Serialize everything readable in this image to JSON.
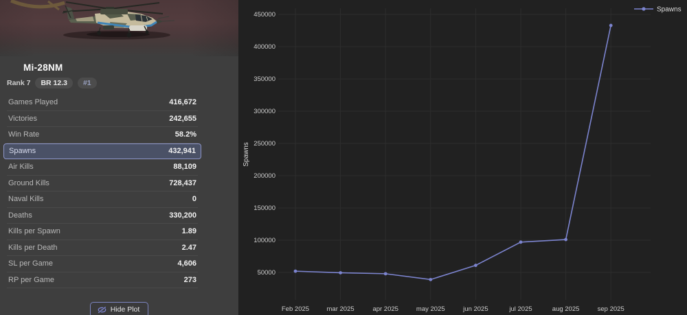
{
  "sidebar": {
    "title": "Mi-28NM",
    "rank": "Rank 7",
    "br_badge": "BR 12.3",
    "position_badge": "#1",
    "vehicle_image": "mi-28nm-attack-helicopter",
    "stats": [
      {
        "label": "Games Played",
        "value": "416,672",
        "selected": false
      },
      {
        "label": "Victories",
        "value": "242,655",
        "selected": false
      },
      {
        "label": "Win Rate",
        "value": "58.2%",
        "selected": false
      },
      {
        "label": "Spawns",
        "value": "432,941",
        "selected": true
      },
      {
        "label": "Air Kills",
        "value": "88,109",
        "selected": false
      },
      {
        "label": "Ground Kills",
        "value": "728,437",
        "selected": false
      },
      {
        "label": "Naval Kills",
        "value": "0",
        "selected": false
      },
      {
        "label": "Deaths",
        "value": "330,200",
        "selected": false
      },
      {
        "label": "Kills per Spawn",
        "value": "1.89",
        "selected": false
      },
      {
        "label": "Kills per Death",
        "value": "2.47",
        "selected": false
      },
      {
        "label": "SL per Game",
        "value": "4,606",
        "selected": false
      },
      {
        "label": "RP per Game",
        "value": "273",
        "selected": false
      }
    ],
    "hide_plot_label": "Hide Plot",
    "hide_plot_icon": "eye-off-icon"
  },
  "colors": {
    "accent_line": "#7c84cf",
    "selected_row_bg": "#4a5166",
    "selected_row_border": "#8e96c9",
    "chart_bg": "#212121",
    "sidebar_bg": "#3e3e3e",
    "gridline": "#2d2d2d"
  },
  "chart_data": {
    "type": "line",
    "x": [
      "Feb 2025",
      "mar 2025",
      "apr 2025",
      "may 2025",
      "jun 2025",
      "jul 2025",
      "aug 2025",
      "sep 2025"
    ],
    "series": [
      {
        "name": "Spawns",
        "values": [
          52000,
          49500,
          48000,
          39000,
          61000,
          97000,
          101000,
          432941
        ],
        "color": "#7c84cf"
      }
    ],
    "title": "",
    "xlabel": "",
    "ylabel": "Spawns",
    "yticks": [
      50000,
      100000,
      150000,
      200000,
      250000,
      300000,
      350000,
      400000,
      450000
    ],
    "ylim": [
      7500,
      460000
    ],
    "grid": true,
    "legend": {
      "position": "top-right",
      "entries": [
        "Spawns"
      ]
    }
  }
}
